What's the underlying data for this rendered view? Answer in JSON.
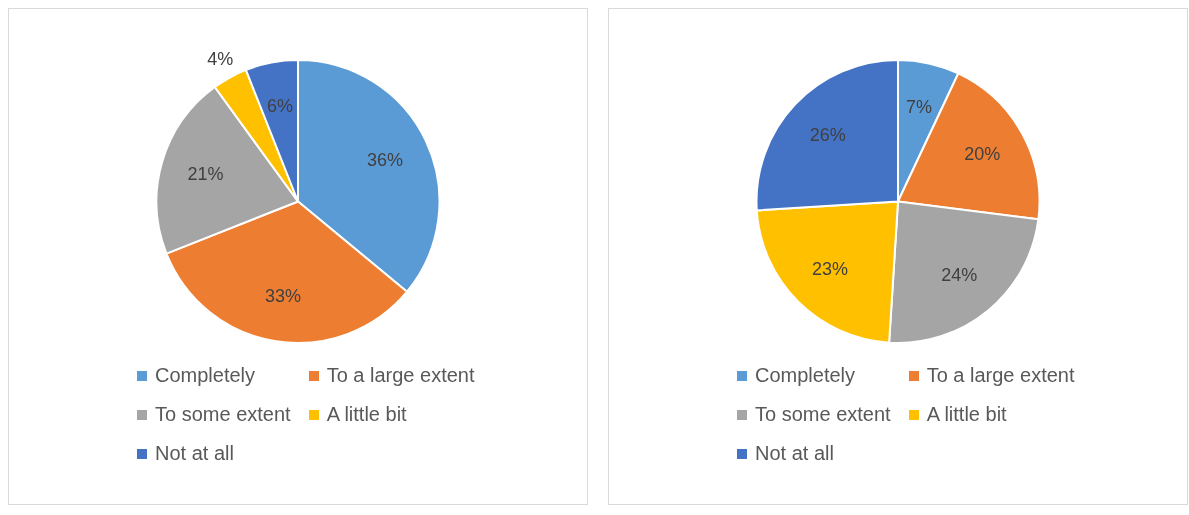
{
  "chart_data": [
    {
      "type": "pie",
      "categories": [
        "Completely",
        "To a large extent",
        "To some extent",
        "A little bit",
        "Not at all"
      ],
      "values": [
        36,
        33,
        21,
        4,
        6
      ],
      "value_labels": [
        "36%",
        "33%",
        "21%",
        "4%",
        "6%"
      ],
      "colors": [
        "#5b9bd5",
        "#ed7d31",
        "#a5a5a5",
        "#ffc000",
        "#4472c4"
      ],
      "legend": "bottom"
    },
    {
      "type": "pie",
      "categories": [
        "Completely",
        "To a large extent",
        "To some extent",
        "A little bit",
        "Not at all"
      ],
      "values": [
        7,
        20,
        24,
        23,
        26
      ],
      "value_labels": [
        "7%",
        "20%",
        "24%",
        "23%",
        "26%"
      ],
      "colors": [
        "#5b9bd5",
        "#ed7d31",
        "#a5a5a5",
        "#ffc000",
        "#4472c4"
      ],
      "legend": "bottom"
    }
  ]
}
